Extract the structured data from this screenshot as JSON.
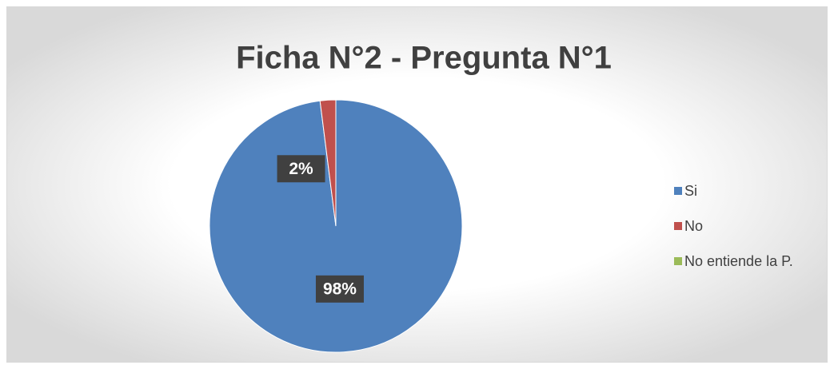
{
  "chart_data": {
    "type": "pie",
    "title": "Ficha N°2 - Pregunta N°1",
    "categories": [
      "Si",
      "No",
      "No entiende la P."
    ],
    "values": [
      98,
      2,
      0
    ],
    "value_labels": [
      "98%",
      "2%",
      null
    ],
    "colors": [
      "#4f81bd",
      "#c0504d",
      "#9bbb59"
    ],
    "legend": "right"
  }
}
